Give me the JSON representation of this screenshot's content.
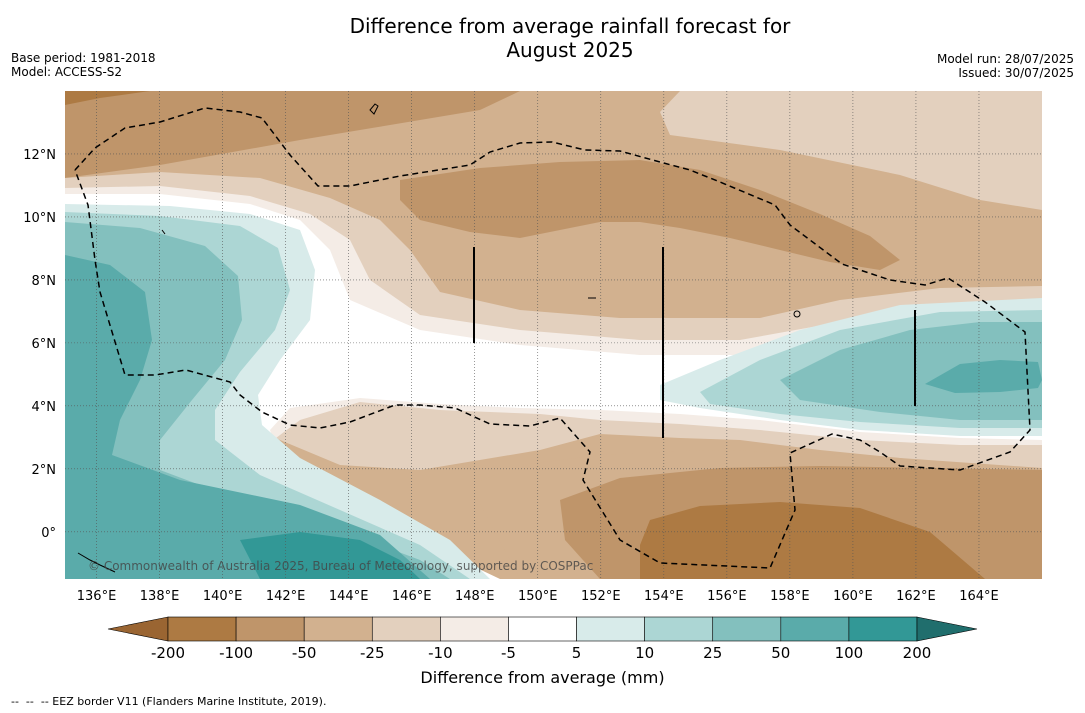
{
  "header": {
    "title_line1": "Difference from average rainfall forecast for",
    "title_line2": "August 2025",
    "base_period": "Base period: 1981-2018",
    "model": "Model: ACCESS-S2",
    "model_run": "Model run: 28/07/2025",
    "issued": "Issued: 30/07/2025"
  },
  "map": {
    "extent": {
      "lon_min": 135.0,
      "lon_max": 166.0,
      "lat_min": -1.5,
      "lat_max": 14.0
    },
    "lat_ticks": [
      {
        "value": 12,
        "label": "12°N"
      },
      {
        "value": 10,
        "label": "10°N"
      },
      {
        "value": 8,
        "label": "8°N"
      },
      {
        "value": 6,
        "label": "6°N"
      },
      {
        "value": 4,
        "label": "4°N"
      },
      {
        "value": 2,
        "label": "2°N"
      },
      {
        "value": 0,
        "label": "0°"
      }
    ],
    "lon_ticks": [
      {
        "value": 136,
        "label": "136°E"
      },
      {
        "value": 138,
        "label": "138°E"
      },
      {
        "value": 140,
        "label": "140°E"
      },
      {
        "value": 142,
        "label": "142°E"
      },
      {
        "value": 144,
        "label": "144°E"
      },
      {
        "value": 146,
        "label": "146°E"
      },
      {
        "value": 148,
        "label": "148°E"
      },
      {
        "value": 150,
        "label": "150°E"
      },
      {
        "value": 152,
        "label": "152°E"
      },
      {
        "value": 154,
        "label": "154°E"
      },
      {
        "value": 156,
        "label": "156°E"
      },
      {
        "value": 158,
        "label": "158°E"
      },
      {
        "value": 160,
        "label": "160°E"
      },
      {
        "value": 162,
        "label": "162°E"
      },
      {
        "value": 164,
        "label": "164°E"
      }
    ],
    "copyright": "© Commonwealth of Australia 2025, Bureau of Meteorology, supported by COSPPac"
  },
  "colorbar": {
    "colors": [
      "#9a6532",
      "#ad7a43",
      "#bf956a",
      "#d2b18f",
      "#e3d0be",
      "#f4ece6",
      "#ffffff",
      "#d8ebea",
      "#acd6d4",
      "#83c0be",
      "#5aabaa",
      "#329896",
      "#206e6d"
    ],
    "bin_colors": [
      "#ad7a43",
      "#bf956a",
      "#d2b18f",
      "#e3d0be",
      "#f4ece6",
      "#ffffff",
      "#d8ebea",
      "#acd6d4",
      "#83c0be",
      "#5aabaa",
      "#329896"
    ],
    "under_color": "#9a6532",
    "over_color": "#206e6d",
    "labels": [
      "-200",
      "-100",
      "-50",
      "-25",
      "-10",
      "-5",
      "5",
      "10",
      "25",
      "50",
      "100",
      "200"
    ],
    "label": "Difference from average (mm)"
  },
  "footnote": "--  --  -- EEZ border V11 (Flanders Marine Institute, 2019)."
}
